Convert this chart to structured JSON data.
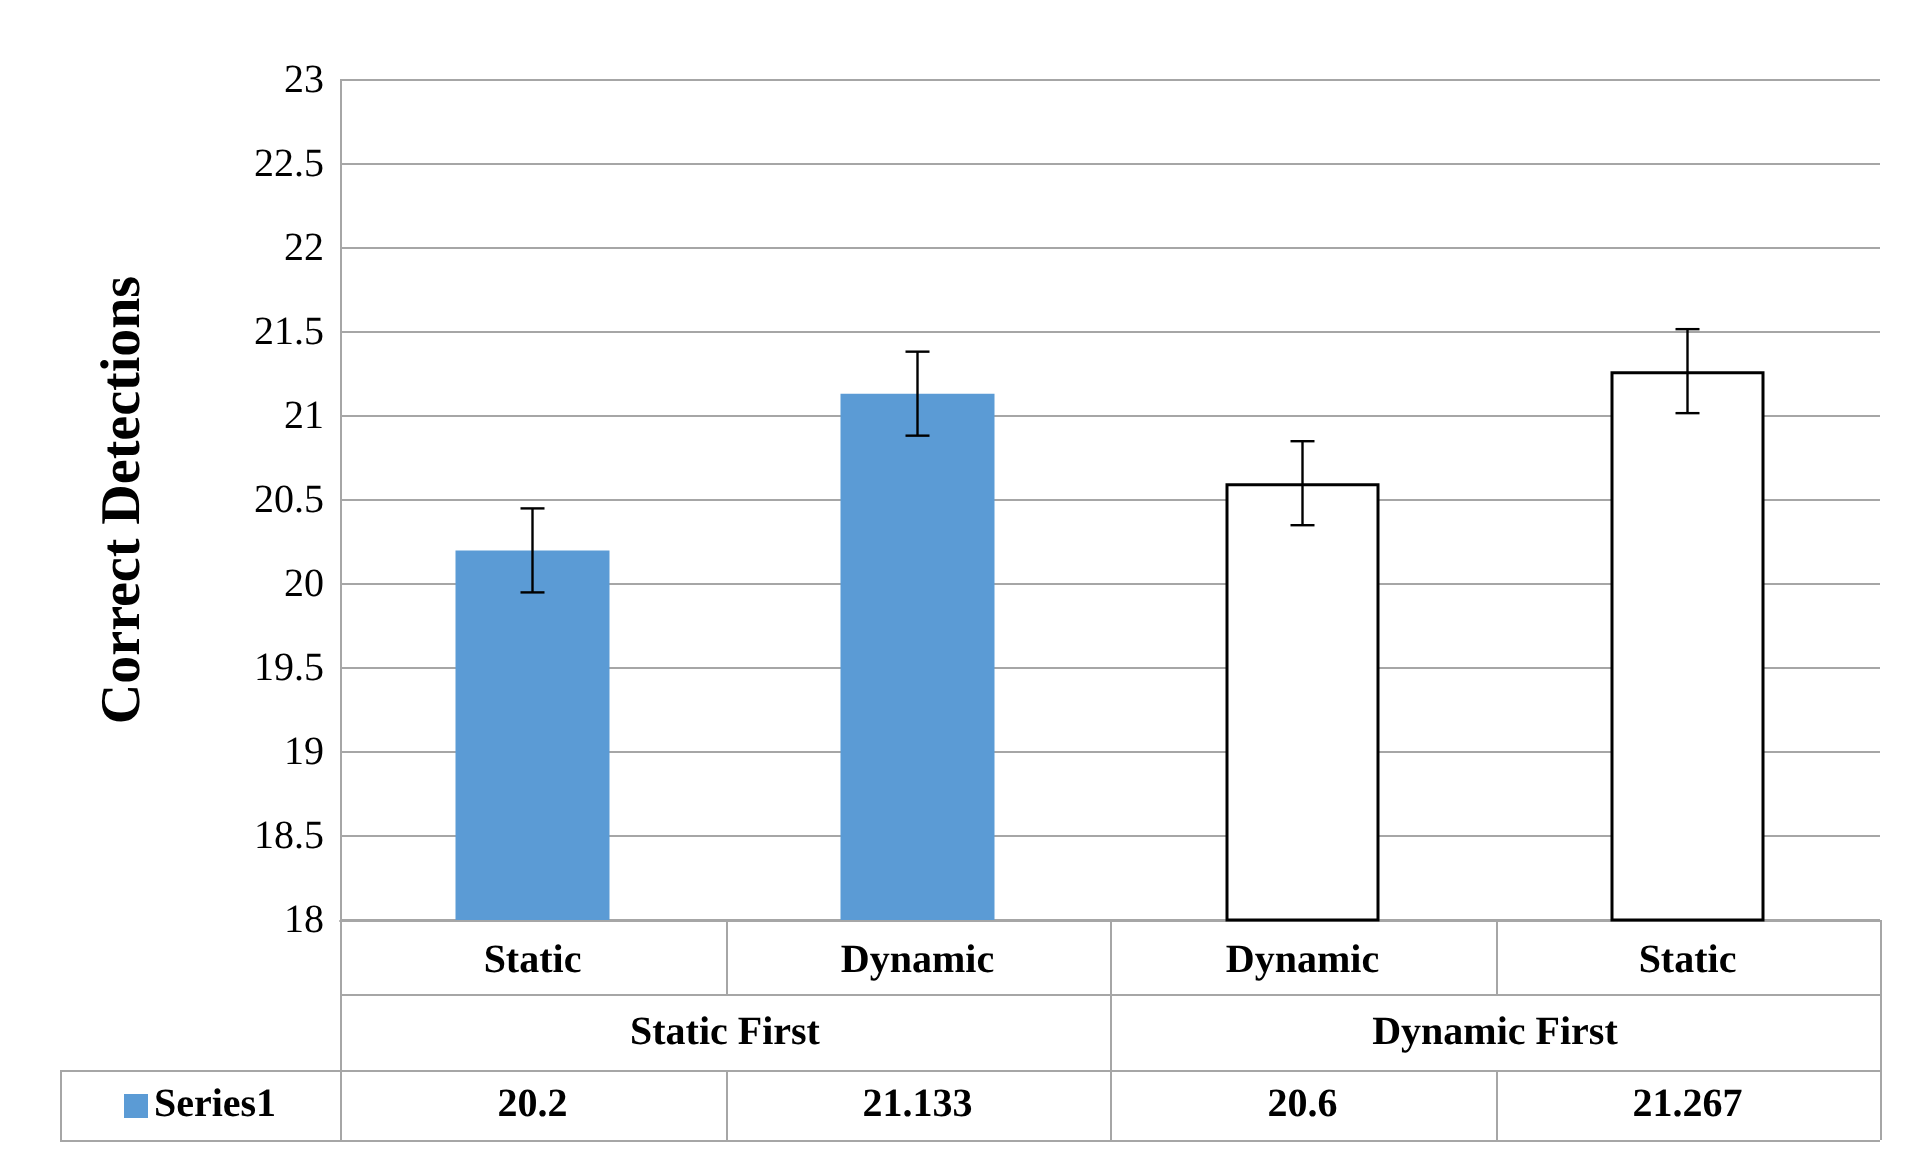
{
  "chart_data": {
    "type": "bar",
    "ylabel": "Correct Detections",
    "categories": [
      "Static",
      "Dynamic",
      "Dynamic",
      "Static"
    ],
    "series": [
      {
        "name": "Series1",
        "color": "#5b9bd5",
        "colors": [
          "#5b9bd5",
          "#5b9bd5",
          "#ffffff",
          "#ffffff"
        ],
        "values": [
          20.2,
          21.133,
          20.6,
          21.267
        ],
        "errors": [
          0.25,
          0.25,
          0.25,
          0.25
        ]
      }
    ],
    "annotations": [
      "Static First",
      "Dynamic First"
    ],
    "ylim": [
      18,
      23
    ],
    "yticks": [
      18,
      18.5,
      19,
      19.5,
      20,
      20.5,
      21,
      21.5,
      22,
      22.5,
      23
    ],
    "grid": "y",
    "legend": "bottom left",
    "data_labels": true
  }
}
